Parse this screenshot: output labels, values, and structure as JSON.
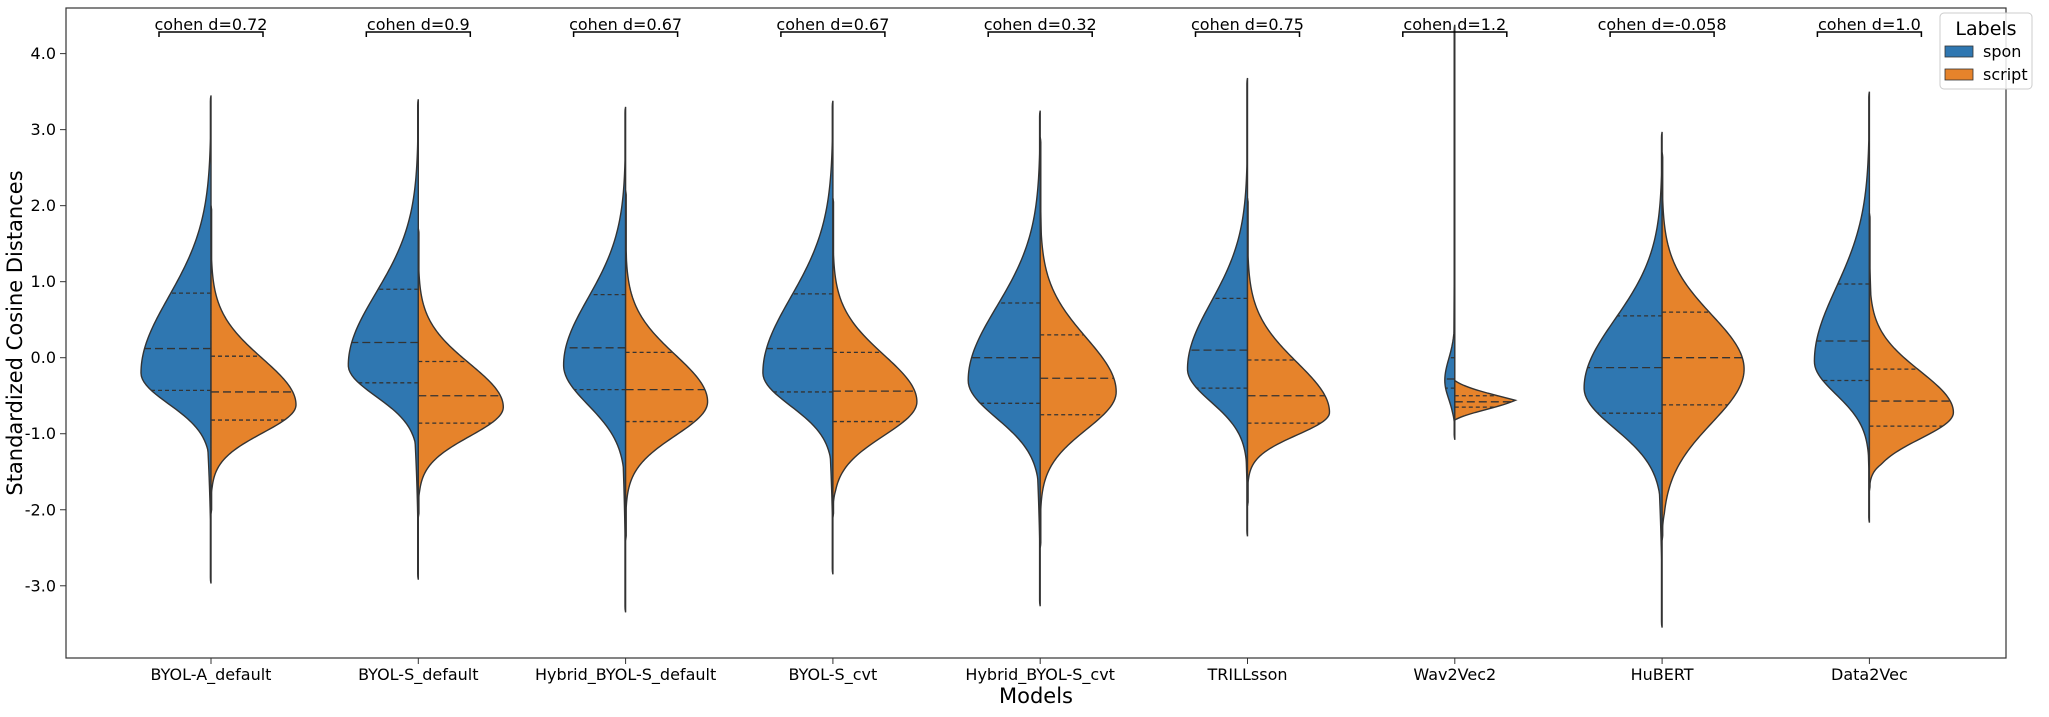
{
  "chart_data": {
    "type": "violin",
    "split": true,
    "xlabel": "Models",
    "ylabel": "Standardized Cosine Distances",
    "ylim": [
      -3.95,
      4.6
    ],
    "yticks": [
      -3.0,
      -2.0,
      -1.0,
      0.0,
      1.0,
      2.0,
      3.0,
      4.0
    ],
    "ytick_labels": [
      "-3.0",
      "-2.0",
      "-1.0",
      "0.0",
      "1.0",
      "2.0",
      "3.0",
      "4.0"
    ],
    "legend": {
      "title": "Labels",
      "placement": "top-right"
    },
    "series": [
      {
        "name": "spon",
        "color": "#2f77b1"
      },
      {
        "name": "script",
        "color": "#e6832b"
      }
    ],
    "models": [
      {
        "label": "BYOL-A_default",
        "annotation": "cohen d=0.72",
        "spon": {
          "min": -2.97,
          "max": 3.45,
          "q1": -0.43,
          "median": 0.12,
          "q3": 0.85,
          "mode": -0.2,
          "halfwidth": 70
        },
        "script": {
          "min": -2.05,
          "max": 2.0,
          "q1": -0.82,
          "median": -0.45,
          "q3": 0.02,
          "mode": -0.62,
          "halfwidth": 85
        }
      },
      {
        "label": "BYOL-S_default",
        "annotation": "cohen d=0.9",
        "spon": {
          "min": -2.92,
          "max": 3.4,
          "q1": -0.33,
          "median": 0.2,
          "q3": 0.9,
          "mode": -0.1,
          "halfwidth": 70
        },
        "script": {
          "min": -2.1,
          "max": 1.7,
          "q1": -0.86,
          "median": -0.5,
          "q3": -0.05,
          "mode": -0.65,
          "halfwidth": 85
        }
      },
      {
        "label": "Hybrid_BYOL-S_default",
        "annotation": "cohen d=0.67",
        "spon": {
          "min": -3.35,
          "max": 3.3,
          "q1": -0.42,
          "median": 0.13,
          "q3": 0.83,
          "mode": -0.1,
          "halfwidth": 62
        },
        "script": {
          "min": -2.4,
          "max": 2.2,
          "q1": -0.84,
          "median": -0.42,
          "q3": 0.07,
          "mode": -0.58,
          "halfwidth": 82
        }
      },
      {
        "label": "BYOL-S_cvt",
        "annotation": "cohen d=0.67",
        "spon": {
          "min": -2.85,
          "max": 3.38,
          "q1": -0.45,
          "median": 0.12,
          "q3": 0.84,
          "mode": -0.2,
          "halfwidth": 70
        },
        "script": {
          "min": -2.1,
          "max": 2.1,
          "q1": -0.84,
          "median": -0.44,
          "q3": 0.07,
          "mode": -0.58,
          "halfwidth": 84
        }
      },
      {
        "label": "Hybrid_BYOL-S_cvt",
        "annotation": "cohen d=0.32",
        "spon": {
          "min": -3.27,
          "max": 3.25,
          "q1": -0.6,
          "median": 0.0,
          "q3": 0.72,
          "mode": -0.3,
          "halfwidth": 72
        },
        "script": {
          "min": -2.5,
          "max": 2.9,
          "q1": -0.75,
          "median": -0.27,
          "q3": 0.3,
          "mode": -0.45,
          "halfwidth": 76
        }
      },
      {
        "label": "TRILLsson",
        "annotation": "cohen d=0.75",
        "spon": {
          "min": -2.35,
          "max": 3.68,
          "q1": -0.4,
          "median": 0.1,
          "q3": 0.78,
          "mode": -0.15,
          "halfwidth": 60
        },
        "script": {
          "min": -1.95,
          "max": 2.1,
          "q1": -0.86,
          "median": -0.5,
          "q3": -0.03,
          "mode": -0.72,
          "halfwidth": 82
        }
      },
      {
        "label": "Wav2Vec2",
        "annotation": "cohen d=1.2",
        "spon": {
          "min": -1.08,
          "max": 4.38,
          "q1": -0.4,
          "median": -0.28,
          "q3": 0.0,
          "mode": -0.3,
          "halfwidth": 10
        },
        "script": {
          "min": -0.82,
          "max": -0.3,
          "q1": -0.65,
          "median": -0.58,
          "q3": -0.5,
          "mode": -0.62,
          "halfwidth": 84
        }
      },
      {
        "label": "HuBERT",
        "annotation": "cohen d=-0.058",
        "spon": {
          "min": -3.55,
          "max": 2.97,
          "q1": -0.73,
          "median": -0.13,
          "q3": 0.55,
          "mode": -0.4,
          "halfwidth": 78
        },
        "script": {
          "min": -2.4,
          "max": 2.7,
          "q1": -0.62,
          "median": 0.0,
          "q3": 0.6,
          "mode": -0.15,
          "halfwidth": 82
        }
      },
      {
        "label": "Data2Vec",
        "annotation": "cohen d=1.0",
        "spon": {
          "min": -2.17,
          "max": 3.5,
          "q1": -0.3,
          "median": 0.22,
          "q3": 0.97,
          "mode": -0.05,
          "halfwidth": 55
        },
        "script": {
          "min": -1.75,
          "max": 1.9,
          "q1": -0.9,
          "median": -0.57,
          "q3": -0.15,
          "mode": -0.72,
          "halfwidth": 84
        }
      }
    ]
  }
}
